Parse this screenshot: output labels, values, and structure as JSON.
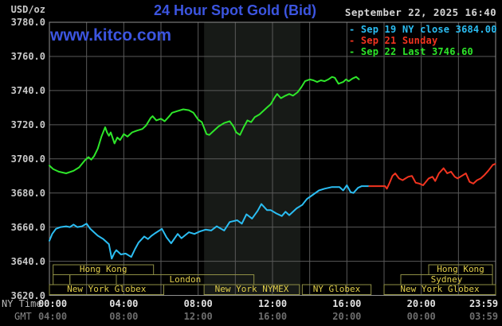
{
  "header": {
    "unit_label": "USD/oz",
    "title": "24 Hour Spot Gold (Bid)",
    "datetime": "September 22, 2025 16:40",
    "watermark": "www.kitco.com"
  },
  "colors": {
    "background": "#000000",
    "title_blue": "#3c55e0",
    "grid": "#5a5a5a",
    "plot_border": "#909090",
    "nymex_band": "#171a17",
    "session_border": "#8f8f45",
    "session_text": "#e2cf4a",
    "series_sep19": "#2bbdf2",
    "series_sep21": "#f23420",
    "series_sep22": "#2ee62a"
  },
  "legend": {
    "items": [
      {
        "marker": "-",
        "label": "Sep 19 NY close 3684.00",
        "color": "#2bbdf2"
      },
      {
        "marker": "-",
        "label": "Sep 21 Sunday",
        "color": "#f23420"
      },
      {
        "marker": "-",
        "label": "Sep 22 Last 3746.60",
        "color": "#2ee62a"
      }
    ]
  },
  "axes": {
    "y_ticks": [
      "3780.0",
      "3760.0",
      "3740.0",
      "3720.0",
      "3700.0",
      "3680.0",
      "3660.0",
      "3640.0",
      "3620.0"
    ],
    "tick_hours": [
      0,
      4,
      8,
      12,
      16,
      20,
      23.983
    ],
    "x_rows": {
      "ny": {
        "label": "NY Time",
        "ticks": [
          "00:00",
          "04:00",
          "08:00",
          "12:00",
          "16:00",
          "20:00",
          "23:59"
        ]
      },
      "gmt": {
        "label": "GMT",
        "ticks": [
          "04:00",
          "08:00",
          "12:00",
          "16:00",
          "20:00",
          "00:00",
          "03:59"
        ]
      }
    }
  },
  "sessions": [
    {
      "row": 1,
      "start_hour": 0.2,
      "end_hour": 5.6,
      "label": "Hong Kong"
    },
    {
      "row": 1,
      "start_hour": 20.4,
      "end_hour": 23.83,
      "label": "Hong Kong"
    },
    {
      "row": 2,
      "start_hour": 0.2,
      "end_hour": 1.1,
      "label": ""
    },
    {
      "row": 2,
      "start_hour": 1.1,
      "end_hour": 3.6,
      "label": ""
    },
    {
      "row": 2,
      "start_hour": 3.6,
      "end_hour": 11.0,
      "label": "London"
    },
    {
      "row": 2,
      "start_hour": 18.9,
      "end_hour": 23.83,
      "label": "Sydney"
    },
    {
      "row": 3,
      "start_hour": 0.0,
      "end_hour": 6.15,
      "label": "New York Globex"
    },
    {
      "row": 3,
      "start_hour": 8.32,
      "end_hour": 13.45,
      "label": "New York NYMEX"
    },
    {
      "row": 3,
      "start_hour": 13.6,
      "end_hour": 17.3,
      "label": "NY Globex"
    },
    {
      "row": 3,
      "start_hour": 18.0,
      "end_hour": 24.0,
      "label": "New York Globex"
    }
  ],
  "highlight_band": {
    "start_hour": 8.32,
    "end_hour": 13.5
  },
  "chart_data": {
    "type": "line",
    "title": "24 Hour Spot Gold (Bid)",
    "x_unit": "NY time, hours from 00:00",
    "x_range": [
      0,
      24
    ],
    "y_range": [
      3620,
      3780
    ],
    "y_gridline_step": 20,
    "x_gridline_step_hours": 2,
    "legend_position": "top-right",
    "series": [
      {
        "name": "Sep 19 NY close 3684.00",
        "color": "#2bbdf2",
        "points": [
          [
            0,
            3652
          ],
          [
            0.15,
            3656
          ],
          [
            0.35,
            3659
          ],
          [
            0.6,
            3660
          ],
          [
            0.9,
            3660.5
          ],
          [
            1.1,
            3660
          ],
          [
            1.3,
            3661.5
          ],
          [
            1.5,
            3660
          ],
          [
            1.75,
            3660.5
          ],
          [
            2.0,
            3662
          ],
          [
            2.2,
            3659
          ],
          [
            2.4,
            3657
          ],
          [
            2.6,
            3655
          ],
          [
            2.9,
            3653
          ],
          [
            3.2,
            3650
          ],
          [
            3.35,
            3641.5
          ],
          [
            3.5,
            3645
          ],
          [
            3.6,
            3646.5
          ],
          [
            3.85,
            3644
          ],
          [
            4.1,
            3644.5
          ],
          [
            4.4,
            3642.5
          ],
          [
            4.6,
            3647
          ],
          [
            4.8,
            3651
          ],
          [
            5.1,
            3654.5
          ],
          [
            5.3,
            3653
          ],
          [
            5.5,
            3655
          ],
          [
            5.7,
            3656.5
          ],
          [
            6.05,
            3659
          ],
          [
            6.3,
            3654
          ],
          [
            6.55,
            3650.5
          ],
          [
            6.9,
            3656
          ],
          [
            7.1,
            3653.5
          ],
          [
            7.5,
            3657
          ],
          [
            7.8,
            3656
          ],
          [
            8.1,
            3657.5
          ],
          [
            8.4,
            3658.5
          ],
          [
            8.7,
            3658
          ],
          [
            9.0,
            3660.5
          ],
          [
            9.4,
            3658
          ],
          [
            9.7,
            3663
          ],
          [
            10.1,
            3664
          ],
          [
            10.35,
            3662
          ],
          [
            10.6,
            3667.5
          ],
          [
            10.9,
            3665
          ],
          [
            11.2,
            3669.5
          ],
          [
            11.4,
            3673.5
          ],
          [
            11.7,
            3670
          ],
          [
            11.9,
            3670
          ],
          [
            12.2,
            3668
          ],
          [
            12.5,
            3666.5
          ],
          [
            12.7,
            3669
          ],
          [
            12.9,
            3667
          ],
          [
            13.3,
            3671
          ],
          [
            13.6,
            3673
          ],
          [
            13.85,
            3676.5
          ],
          [
            14.05,
            3678
          ],
          [
            14.5,
            3681.5
          ],
          [
            14.8,
            3682.5
          ],
          [
            15.2,
            3683.5
          ],
          [
            15.6,
            3683.5
          ],
          [
            15.8,
            3681.5
          ],
          [
            16.0,
            3684.5
          ],
          [
            16.2,
            3680.5
          ],
          [
            16.35,
            3680
          ],
          [
            16.6,
            3683
          ],
          [
            16.8,
            3684
          ],
          [
            17.2,
            3684
          ]
        ]
      },
      {
        "name": "Sep 21 Sunday",
        "color": "#f23420",
        "points": [
          [
            17.2,
            3684
          ],
          [
            18.05,
            3684
          ],
          [
            18.15,
            3682.5
          ],
          [
            18.3,
            3686
          ],
          [
            18.45,
            3690
          ],
          [
            18.6,
            3691.5
          ],
          [
            18.8,
            3688.5
          ],
          [
            19.0,
            3687.5
          ],
          [
            19.3,
            3689.5
          ],
          [
            19.5,
            3690
          ],
          [
            19.7,
            3686
          ],
          [
            19.9,
            3685.5
          ],
          [
            20.1,
            3684.5
          ],
          [
            20.4,
            3688.5
          ],
          [
            20.6,
            3689.5
          ],
          [
            20.75,
            3687
          ],
          [
            20.95,
            3691.5
          ],
          [
            21.2,
            3694.5
          ],
          [
            21.4,
            3691.5
          ],
          [
            21.6,
            3692.5
          ],
          [
            21.8,
            3689.5
          ],
          [
            21.95,
            3688.5
          ],
          [
            22.1,
            3689.5
          ],
          [
            22.4,
            3691.5
          ],
          [
            22.6,
            3686.5
          ],
          [
            22.8,
            3685.5
          ],
          [
            23.0,
            3687.5
          ],
          [
            23.2,
            3688.5
          ],
          [
            23.4,
            3690.5
          ],
          [
            23.6,
            3693
          ],
          [
            23.85,
            3696.5
          ],
          [
            23.98,
            3697
          ]
        ]
      },
      {
        "name": "Sep 22 Last 3746.60",
        "color": "#2ee62a",
        "points": [
          [
            0,
            3696
          ],
          [
            0.2,
            3694
          ],
          [
            0.5,
            3692.5
          ],
          [
            0.9,
            3691.5
          ],
          [
            1.3,
            3693
          ],
          [
            1.6,
            3695
          ],
          [
            1.9,
            3699
          ],
          [
            2.1,
            3701
          ],
          [
            2.25,
            3699.5
          ],
          [
            2.4,
            3701.5
          ],
          [
            2.6,
            3706
          ],
          [
            2.8,
            3713
          ],
          [
            3.0,
            3718.5
          ],
          [
            3.1,
            3715.5
          ],
          [
            3.2,
            3713.5
          ],
          [
            3.3,
            3715.5
          ],
          [
            3.5,
            3709
          ],
          [
            3.65,
            3712.5
          ],
          [
            3.8,
            3711
          ],
          [
            4.0,
            3714.5
          ],
          [
            4.2,
            3713
          ],
          [
            4.45,
            3715.5
          ],
          [
            4.7,
            3716.5
          ],
          [
            5.0,
            3717.5
          ],
          [
            5.2,
            3719.5
          ],
          [
            5.45,
            3724
          ],
          [
            5.55,
            3725
          ],
          [
            5.75,
            3722.5
          ],
          [
            6.0,
            3723.5
          ],
          [
            6.2,
            3722
          ],
          [
            6.45,
            3725
          ],
          [
            6.6,
            3727
          ],
          [
            6.9,
            3728
          ],
          [
            7.2,
            3729
          ],
          [
            7.5,
            3728.5
          ],
          [
            7.75,
            3727
          ],
          [
            8.0,
            3723
          ],
          [
            8.2,
            3721.5
          ],
          [
            8.45,
            3714.5
          ],
          [
            8.6,
            3714
          ],
          [
            8.8,
            3716
          ],
          [
            9.1,
            3719
          ],
          [
            9.4,
            3721
          ],
          [
            9.7,
            3722
          ],
          [
            9.9,
            3719
          ],
          [
            10.05,
            3715.5
          ],
          [
            10.25,
            3714
          ],
          [
            10.45,
            3718.5
          ],
          [
            10.65,
            3722.5
          ],
          [
            10.85,
            3721.5
          ],
          [
            11.05,
            3724.5
          ],
          [
            11.3,
            3726
          ],
          [
            11.5,
            3728
          ],
          [
            11.7,
            3730
          ],
          [
            11.9,
            3732
          ],
          [
            12.15,
            3736.5
          ],
          [
            12.25,
            3738
          ],
          [
            12.45,
            3735.5
          ],
          [
            12.7,
            3737
          ],
          [
            12.9,
            3738
          ],
          [
            13.1,
            3737
          ],
          [
            13.35,
            3739
          ],
          [
            13.55,
            3742
          ],
          [
            13.75,
            3745.5
          ],
          [
            14.0,
            3746.5
          ],
          [
            14.2,
            3746
          ],
          [
            14.4,
            3745
          ],
          [
            14.6,
            3746
          ],
          [
            14.8,
            3745.5
          ],
          [
            15.0,
            3746.5
          ],
          [
            15.2,
            3748
          ],
          [
            15.35,
            3747.5
          ],
          [
            15.55,
            3744
          ],
          [
            15.8,
            3745
          ],
          [
            15.95,
            3746.5
          ],
          [
            16.1,
            3745.5
          ],
          [
            16.3,
            3747
          ],
          [
            16.5,
            3748
          ],
          [
            16.65,
            3746.6
          ]
        ]
      }
    ]
  }
}
